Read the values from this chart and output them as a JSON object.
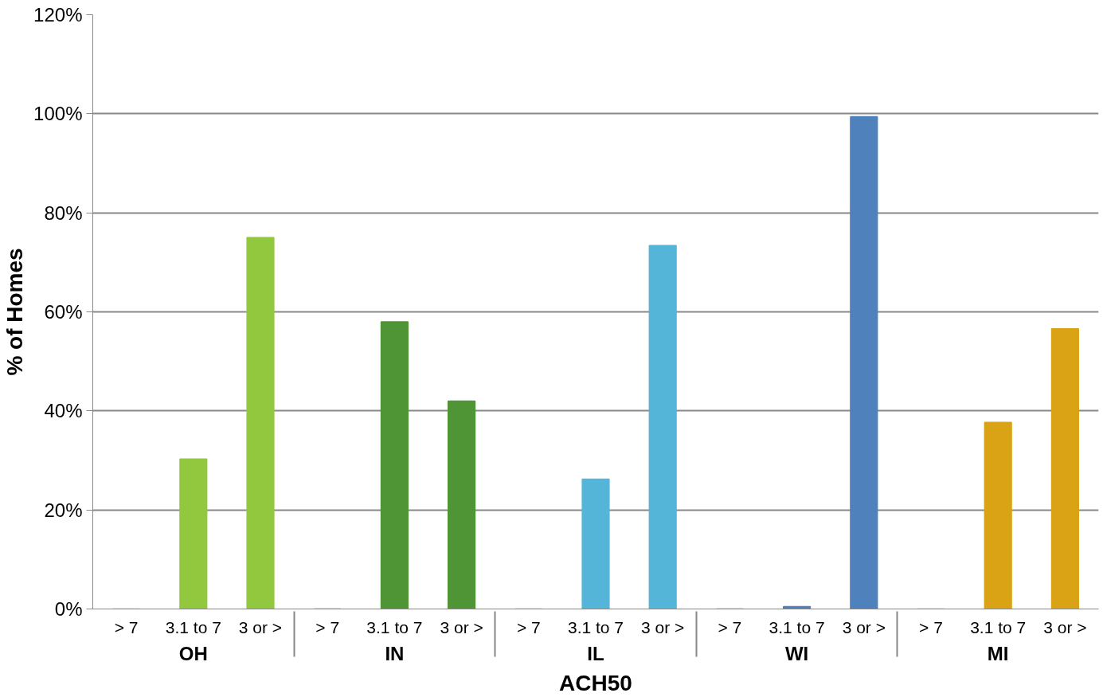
{
  "chart_data": {
    "type": "bar",
    "xlabel": "ACH50",
    "ylabel": "% of Homes",
    "categories": [
      "OH",
      "IN",
      "IL",
      "WI",
      "MI"
    ],
    "series": [
      {
        "name": "> 7",
        "colors": [
          "#92c83e",
          "#509535",
          "#55b5d9",
          "#4f81bd",
          "#d9a315"
        ],
        "values": [
          0,
          0,
          0,
          0,
          0
        ]
      },
      {
        "name": "3.1 to 7",
        "colors": [
          "#92c83e",
          "#509535",
          "#55b5d9",
          "#4f81bd",
          "#d9a315"
        ],
        "values": [
          30.3,
          58,
          26.2,
          0.5,
          37.7
        ]
      },
      {
        "name": "3 or >",
        "colors": [
          "#92c83e",
          "#509535",
          "#55b5d9",
          "#4f81bd",
          "#d9a315"
        ],
        "values": [
          75,
          42,
          73.4,
          99.4,
          56.6
        ]
      }
    ],
    "ylim": [
      0,
      120
    ],
    "yticks": [
      {
        "value": 0,
        "label": "0%"
      },
      {
        "value": 20,
        "label": "20%"
      },
      {
        "value": 40,
        "label": "40%"
      },
      {
        "value": 60,
        "label": "60%"
      },
      {
        "value": 80,
        "label": "80%"
      },
      {
        "value": 100,
        "label": "100%"
      },
      {
        "value": 120,
        "label": "120%"
      }
    ],
    "grid": "y"
  }
}
